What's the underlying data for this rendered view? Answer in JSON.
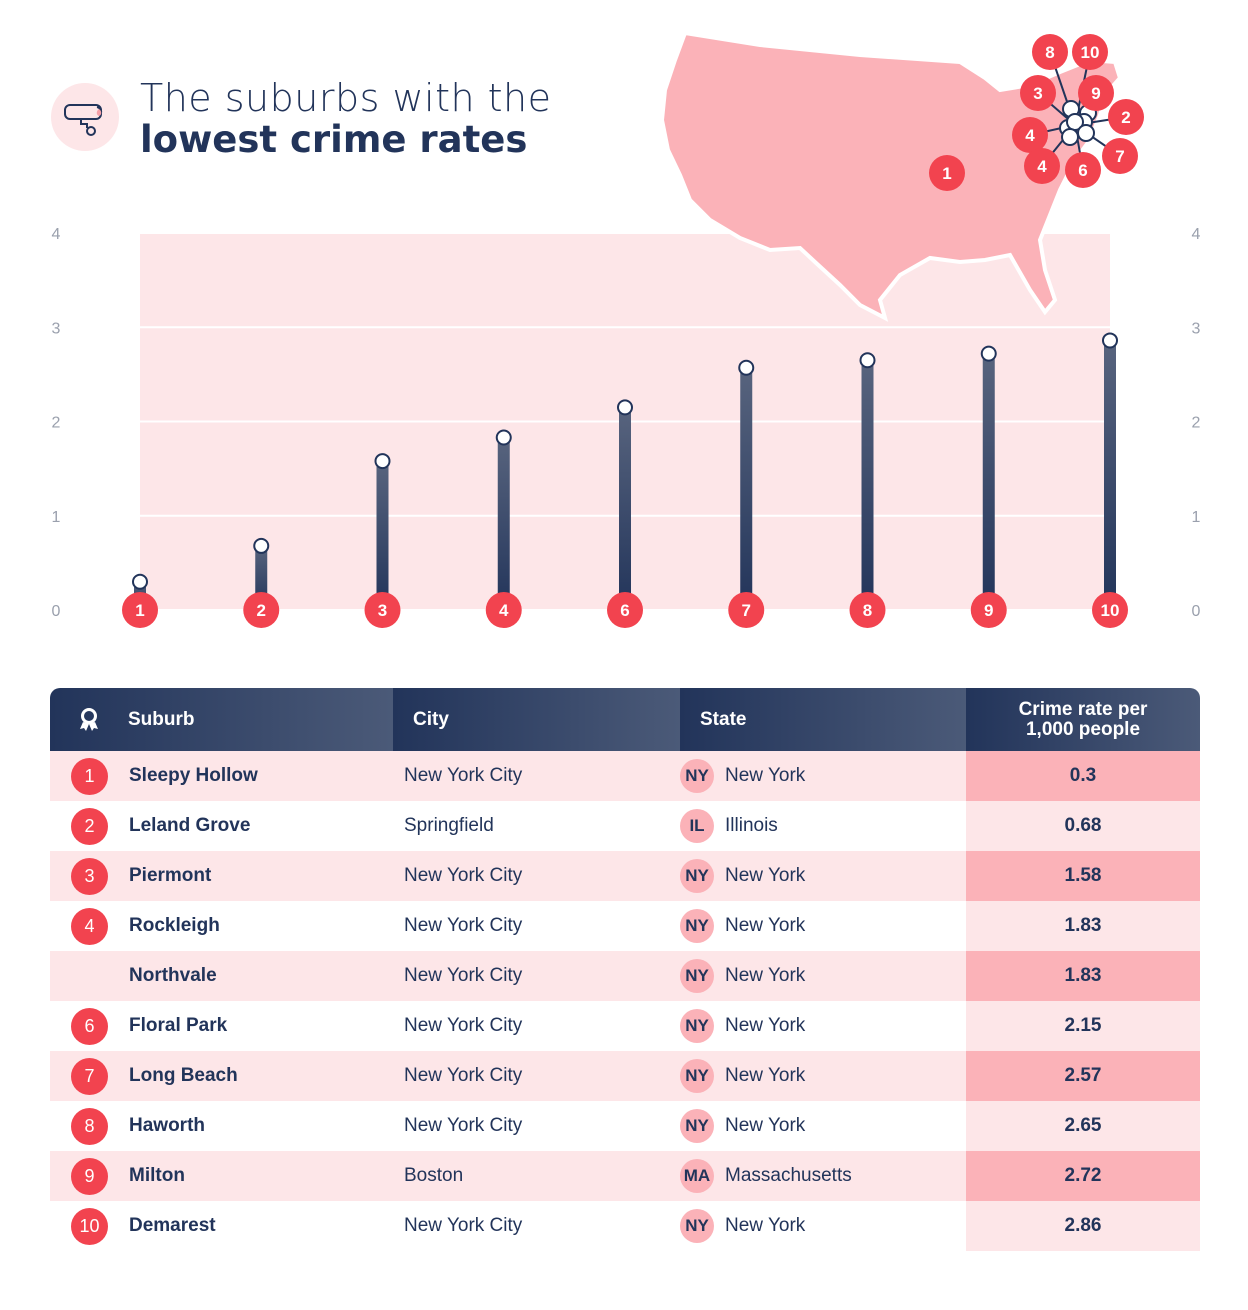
{
  "title": {
    "line1": "The suburbs with the",
    "line2": "lowest crime rates"
  },
  "colors": {
    "navy": "#22345a",
    "red": "#f2434f",
    "pink": "#fbb2b8",
    "light_pink": "#fde6e8"
  },
  "map": {
    "markers": [
      "8",
      "10",
      "3",
      "9",
      "2",
      "4",
      "4",
      "6",
      "7",
      "1"
    ]
  },
  "chart_data": {
    "type": "lollipop",
    "categories": [
      "1",
      "2",
      "3",
      "4",
      "6",
      "7",
      "8",
      "9",
      "10"
    ],
    "values": [
      0.3,
      0.68,
      1.58,
      1.83,
      2.15,
      2.57,
      2.65,
      2.72,
      2.86
    ],
    "ylim": [
      0,
      4
    ],
    "yticks": [
      "0",
      "1",
      "2",
      "3",
      "4"
    ],
    "grid": true
  },
  "table": {
    "headers": [
      "Suburb",
      "City",
      "State",
      "Crime rate per 1,000 people"
    ],
    "rows": [
      {
        "rank": "1",
        "suburb": "Sleepy Hollow",
        "city": "New York City",
        "abbr": "NY",
        "state": "New York",
        "rate": "0.3"
      },
      {
        "rank": "2",
        "suburb": "Leland Grove",
        "city": "Springfield",
        "abbr": "IL",
        "state": "Illinois",
        "rate": "0.68"
      },
      {
        "rank": "3",
        "suburb": "Piermont",
        "city": "New York City",
        "abbr": "NY",
        "state": "New York",
        "rate": "1.58"
      },
      {
        "rank": "4",
        "suburb": "Rockleigh",
        "city": "New York City",
        "abbr": "NY",
        "state": "New York",
        "rate": "1.83"
      },
      {
        "rank": "",
        "suburb": "Northvale",
        "city": "New York City",
        "abbr": "NY",
        "state": "New York",
        "rate": "1.83"
      },
      {
        "rank": "6",
        "suburb": "Floral Park",
        "city": "New York City",
        "abbr": "NY",
        "state": "New York",
        "rate": "2.15"
      },
      {
        "rank": "7",
        "suburb": "Long Beach",
        "city": "New York City",
        "abbr": "NY",
        "state": "New York",
        "rate": "2.57"
      },
      {
        "rank": "8",
        "suburb": "Haworth",
        "city": "New York City",
        "abbr": "NY",
        "state": "New York",
        "rate": "2.65"
      },
      {
        "rank": "9",
        "suburb": "Milton",
        "city": "Boston",
        "abbr": "MA",
        "state": "Massachusetts",
        "rate": "2.72"
      },
      {
        "rank": "10",
        "suburb": "Demarest",
        "city": "New York City",
        "abbr": "NY",
        "state": "New York",
        "rate": "2.86"
      }
    ]
  }
}
